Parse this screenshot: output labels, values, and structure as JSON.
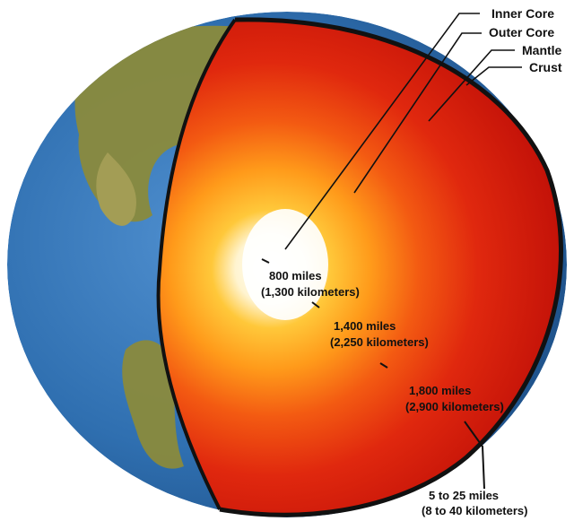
{
  "layers": [
    {
      "name": "Inner Core"
    },
    {
      "name": "Outer Core"
    },
    {
      "name": "Mantle"
    },
    {
      "name": "Crust"
    }
  ],
  "measurements": [
    {
      "miles": "800 miles",
      "km": "(1,300 kilometers)"
    },
    {
      "miles": "1,400 miles",
      "km": "(2,250 kilometers)"
    },
    {
      "miles": "1,800 miles",
      "km": "(2,900 kilometers)"
    },
    {
      "miles": "5 to 25 miles",
      "km": "(8 to 40 kilometers)"
    }
  ],
  "colors": {
    "ocean": "#2f6fb0",
    "land": "#8a8a3c",
    "inner_core": "#ffffff",
    "outer_core": "#ffb020",
    "mantle": "#e0200e",
    "crust": "#111111"
  }
}
